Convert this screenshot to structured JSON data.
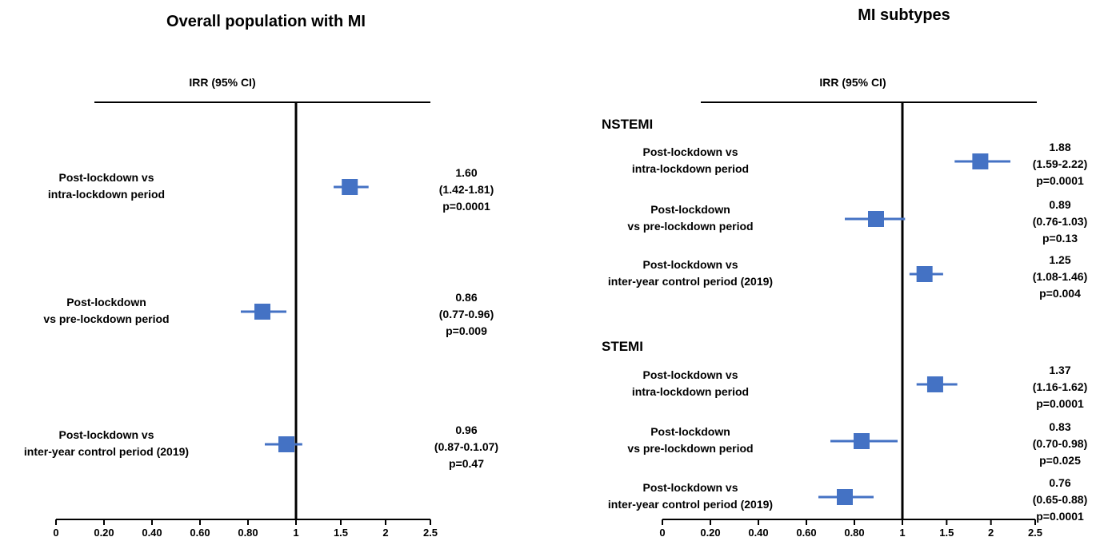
{
  "chart_data": [
    {
      "type": "forest",
      "title": "Overall population with MI",
      "header": "IRR (95% CI)",
      "reference_line": 1,
      "x_ticks": [
        "0",
        "0.20",
        "0.40",
        "0.60",
        "0.80",
        "1",
        "1.5",
        "2",
        "2.5"
      ],
      "groups": [
        {
          "name": "",
          "rows": [
            {
              "label": [
                "Post-lockdown vs",
                "intra-lockdown period"
              ],
              "estimate": 1.6,
              "ci": [
                1.42,
                1.81
              ],
              "result_text": [
                "1.60",
                "(1.42-1.81)",
                "p=0.0001"
              ]
            },
            {
              "label": [
                "Post-lockdown",
                "vs pre-lockdown period"
              ],
              "estimate": 0.86,
              "ci": [
                0.77,
                0.96
              ],
              "result_text": [
                "0.86",
                "(0.77-0.96)",
                "p=0.009"
              ]
            },
            {
              "label": [
                "Post-lockdown vs",
                "inter-year control period (2019)"
              ],
              "estimate": 0.96,
              "ci": [
                0.87,
                1.07
              ],
              "result_text": [
                "0.96",
                "(0.87-0.1.07)",
                "p=0.47"
              ]
            }
          ]
        }
      ]
    },
    {
      "type": "forest",
      "title": "MI subtypes",
      "header": "IRR (95% CI)",
      "reference_line": 1,
      "x_ticks": [
        "0",
        "0.20",
        "0.40",
        "0.60",
        "0.80",
        "1",
        "1.5",
        "2",
        "2.5"
      ],
      "groups": [
        {
          "name": "NSTEMI",
          "rows": [
            {
              "label": [
                "Post-lockdown vs",
                "intra-lockdown period"
              ],
              "estimate": 1.88,
              "ci": [
                1.59,
                2.22
              ],
              "result_text": [
                "1.88",
                "(1.59-2.22)",
                "p=0.0001"
              ]
            },
            {
              "label": [
                "Post-lockdown",
                "vs pre-lockdown period"
              ],
              "estimate": 0.89,
              "ci": [
                0.76,
                1.03
              ],
              "result_text": [
                "0.89",
                "(0.76-1.03)",
                "p=0.13"
              ]
            },
            {
              "label": [
                "Post-lockdown vs",
                "inter-year control period (2019)"
              ],
              "estimate": 1.25,
              "ci": [
                1.08,
                1.46
              ],
              "result_text": [
                "1.25",
                "(1.08-1.46)",
                "p=0.004"
              ]
            }
          ]
        },
        {
          "name": "STEMI",
          "rows": [
            {
              "label": [
                "Post-lockdown vs",
                "intra-lockdown period"
              ],
              "estimate": 1.37,
              "ci": [
                1.16,
                1.62
              ],
              "result_text": [
                "1.37",
                "(1.16-1.62)",
                "p=0.0001"
              ]
            },
            {
              "label": [
                "Post-lockdown",
                "vs pre-lockdown period"
              ],
              "estimate": 0.83,
              "ci": [
                0.7,
                0.98
              ],
              "result_text": [
                "0.83",
                "(0.70-0.98)",
                "p=0.025"
              ]
            },
            {
              "label": [
                "Post-lockdown vs",
                "inter-year control period (2019)"
              ],
              "estimate": 0.76,
              "ci": [
                0.65,
                0.88
              ],
              "result_text": [
                "0.76",
                "(0.65-0.88)",
                "p=0.0001"
              ]
            }
          ]
        }
      ]
    }
  ],
  "colors": {
    "marker": "#4472C4",
    "axis": "#000000"
  }
}
